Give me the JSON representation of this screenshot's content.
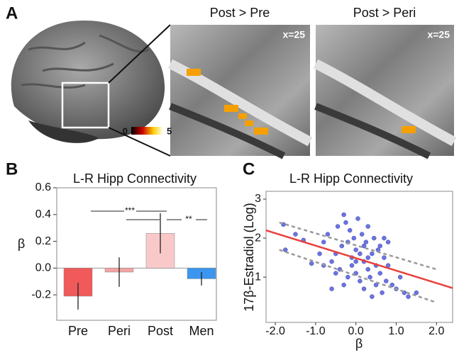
{
  "panel_labels": [
    "A",
    "B",
    "C"
  ],
  "panel_a": {
    "titles": [
      "Post > Pre",
      "Post > Peri"
    ],
    "coordinate_labels": [
      "x=25",
      "x=25"
    ],
    "colorbar": {
      "min": 0,
      "max": 5
    }
  },
  "chart_data": [
    {
      "type": "bar",
      "title": "L-R Hipp Connectivity",
      "ylabel": "β",
      "categories": [
        "Pre",
        "Peri",
        "Post",
        "Men"
      ],
      "values": [
        -0.21,
        -0.03,
        0.26,
        -0.08
      ],
      "errors": [
        0.1,
        0.11,
        0.15,
        0.05
      ],
      "colors": [
        "#f05a5a",
        "#f4a3a3",
        "#f9c9c9",
        "#3b96f0"
      ],
      "ylim": [
        -0.39,
        0.6
      ],
      "yticks": [
        0.6,
        0.4,
        0.2,
        {
          "value": 0,
          "label": "0.0"
        },
        -0.2
      ],
      "significance": [
        "***",
        "**"
      ]
    },
    {
      "type": "scatter",
      "title": "L-R Hipp Connectivity",
      "xlabel": "β",
      "ylabel": "17β-Estradiol (Log)",
      "x": [
        -1.8,
        -1.75,
        -1.5,
        -1.3,
        -1.1,
        -0.9,
        -0.8,
        -0.7,
        -0.6,
        -0.5,
        -0.45,
        -0.4,
        -0.35,
        -0.3,
        -0.25,
        -0.2,
        -0.15,
        -0.1,
        -0.05,
        0.0,
        0.0,
        0.05,
        0.1,
        0.1,
        0.15,
        0.2,
        0.2,
        0.25,
        0.3,
        0.3,
        0.35,
        0.4,
        0.4,
        0.45,
        0.5,
        0.5,
        0.55,
        0.6,
        0.65,
        0.7,
        0.7,
        0.75,
        0.8,
        0.9,
        1.0,
        1.1,
        1.2,
        1.3,
        1.5,
        -0.6,
        -0.3,
        -0.1,
        0.0,
        0.3,
        -0.2,
        -0.5,
        0.6,
        0.8,
        0.2,
        -0.8
      ],
      "values": [
        2.35,
        1.7,
        2.1,
        1.95,
        1.35,
        1.6,
        1.9,
        2.1,
        1.4,
        1.6,
        2.3,
        1.2,
        1.8,
        2.6,
        2.4,
        1.9,
        2.2,
        1.5,
        2.0,
        1.7,
        1.1,
        2.5,
        1.6,
        0.9,
        2.1,
        1.4,
        0.7,
        1.9,
        1.2,
        2.3,
        1.0,
        1.6,
        0.5,
        2.0,
        1.3,
        0.8,
        1.7,
        1.1,
        0.6,
        1.5,
        2.0,
        0.9,
        1.3,
        0.8,
        0.7,
        1.0,
        0.6,
        0.5,
        0.6,
        0.7,
        0.8,
        1.3,
        1.4,
        1.5,
        1.0,
        1.1,
        1.8,
        1.9,
        1.8,
        1.3
      ],
      "color": "#6b74e0",
      "fit": {
        "x": [
          -2.23,
          2.4
        ],
        "values": [
          2.2,
          0.72
        ],
        "color": "#e8413c"
      },
      "ci": [
        {
          "x": [
            -1.9,
            2.0
          ],
          "values": [
            2.4,
            1.2
          ]
        },
        {
          "x": [
            -1.9,
            2.0
          ],
          "values": [
            1.7,
            0.35
          ]
        }
      ],
      "ci_color": "#999999",
      "xlim": [
        -2.23,
        2.4
      ],
      "ylim": [
        -0.16,
        3.2
      ],
      "xticks": [
        {
          "value": -2,
          "label": "-2.0"
        },
        {
          "value": -1,
          "label": "-1.0"
        },
        {
          "value": 0,
          "label": "0.0"
        },
        {
          "value": 1,
          "label": "1.0"
        },
        {
          "value": 2,
          "label": "2.0"
        }
      ],
      "yticks": [
        1,
        2,
        3
      ]
    }
  ]
}
